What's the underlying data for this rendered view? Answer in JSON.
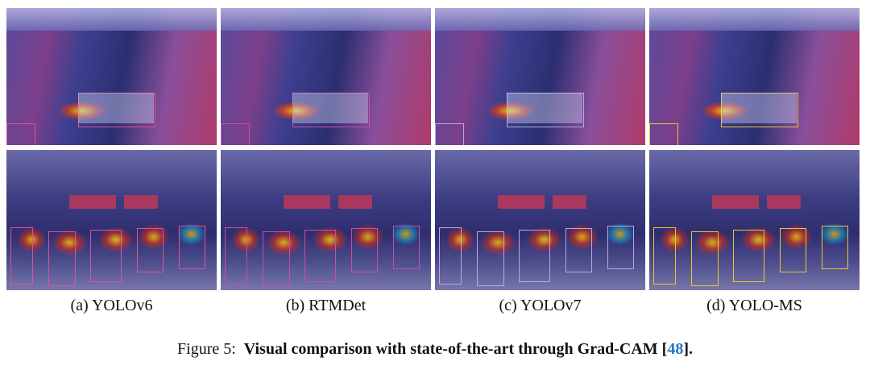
{
  "figure": {
    "panels": [
      {
        "label": "(a) YOLOv6"
      },
      {
        "label": "(b) RTMDet"
      },
      {
        "label": "(c) YOLOv7"
      },
      {
        "label": "(d) YOLO-MS"
      }
    ],
    "caption": {
      "prefix": "Figure 5:",
      "text": "Visual comparison with state-of-the-art  through Grad-CAM [",
      "ref": "48",
      "suffix": "]."
    }
  }
}
